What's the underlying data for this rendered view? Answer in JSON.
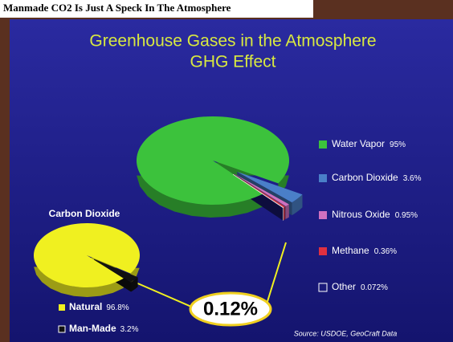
{
  "header": "Manmade CO2 Is Just A Speck In The Atmosphere",
  "chart_data": [
    {
      "type": "pie",
      "title": "Greenhouse Gases in the Atmosphere",
      "subtitle": "GHG Effect",
      "categories": [
        "Water Vapor",
        "Carbon Dioxide",
        "Nitrous Oxide",
        "Methane",
        "Other"
      ],
      "values": [
        95,
        3.6,
        0.95,
        0.36,
        0.072
      ],
      "value_labels": [
        "95%",
        "3.6%",
        "0.95%",
        "0.36%",
        "0.072%"
      ],
      "colors": [
        "#3cc23c",
        "#4a7fc8",
        "#d070c0",
        "#e03040",
        "#1a1a7a"
      ],
      "source": "Source: USDOE, GeoCraft Data"
    },
    {
      "type": "pie",
      "title": "Carbon Dioxide",
      "categories": [
        "Natural",
        "Man-Made"
      ],
      "values": [
        96.8,
        3.2
      ],
      "value_labels": [
        "96.8%",
        "3.2%"
      ],
      "colors": [
        "#f0f020",
        "#111111"
      ],
      "annotation": "0.12%"
    }
  ]
}
